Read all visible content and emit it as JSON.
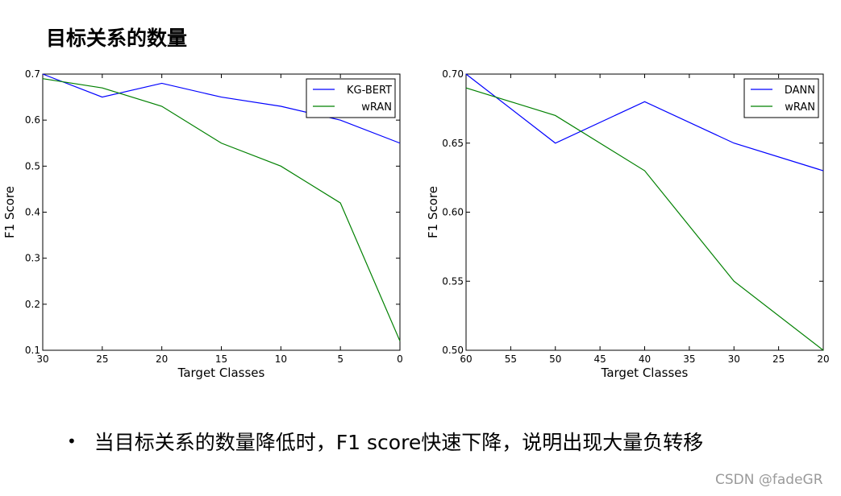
{
  "slide_title": "目标关系的数量",
  "bullet_text": "当目标关系的数量降低时，F1 score快速下降，说明出现大量负转移",
  "watermark": "CSDN @fadeGR",
  "chart_data": [
    {
      "type": "line",
      "xlabel": "Target Classes",
      "ylabel": "F1 Score",
      "xlim": [
        30,
        0
      ],
      "ylim": [
        0.1,
        0.7
      ],
      "xticks": [
        30,
        25,
        20,
        15,
        10,
        5,
        0
      ],
      "yticks": [
        0.1,
        0.2,
        0.3,
        0.4,
        0.5,
        0.6,
        0.7
      ],
      "ytick_labels": [
        "0.1",
        "0.2",
        "0.3",
        "0.4",
        "0.5",
        "0.6",
        "0.7"
      ],
      "legend_position": "top-right",
      "x": [
        30,
        25,
        20,
        15,
        10,
        5,
        0
      ],
      "series": [
        {
          "name": "KG-BERT",
          "color": "#0000ff",
          "values": [
            0.7,
            0.65,
            0.68,
            0.65,
            0.63,
            0.6,
            0.55
          ]
        },
        {
          "name": "wRAN",
          "color": "#008000",
          "values": [
            0.69,
            0.67,
            0.63,
            0.55,
            0.5,
            0.42,
            0.12
          ]
        }
      ]
    },
    {
      "type": "line",
      "xlabel": "Target Classes",
      "ylabel": "F1 Score",
      "xlim": [
        60,
        20
      ],
      "ylim": [
        0.5,
        0.7
      ],
      "xticks": [
        60,
        55,
        50,
        45,
        40,
        35,
        30,
        25,
        20
      ],
      "yticks": [
        0.5,
        0.55,
        0.6,
        0.65,
        0.7
      ],
      "ytick_labels": [
        "0.50",
        "0.55",
        "0.60",
        "0.65",
        "0.70"
      ],
      "legend_position": "top-right",
      "x": [
        60,
        50,
        40,
        30,
        20
      ],
      "series": [
        {
          "name": "DANN",
          "color": "#0000ff",
          "values": [
            0.7,
            0.65,
            0.68,
            0.65,
            0.63
          ]
        },
        {
          "name": "wRAN",
          "color": "#008000",
          "values": [
            0.69,
            0.67,
            0.63,
            0.55,
            0.5
          ]
        }
      ]
    }
  ]
}
